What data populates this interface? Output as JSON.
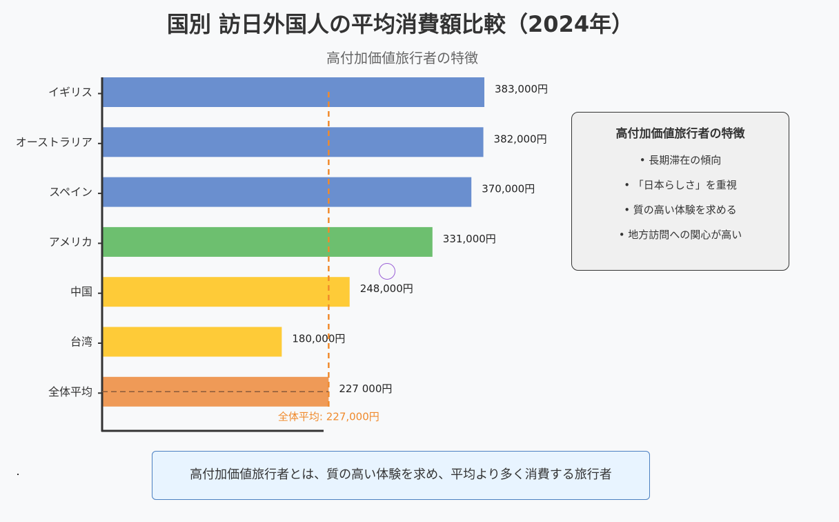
{
  "title": "国別 訪日外国人の平均消費額比較（2024年）",
  "subtitle": "高付加価値旅行者の特徴",
  "chart_data": {
    "type": "bar",
    "orientation": "horizontal",
    "title": "国別 訪日外国人の平均消費額比較（2024年）",
    "subtitle": "高付加価値旅行者の特徴",
    "categories": [
      "イギリス",
      "オーストラリア",
      "スペイン",
      "アメリカ",
      "中国",
      "台湾",
      "全体平均"
    ],
    "values": [
      383000,
      382000,
      370000,
      331000,
      248000,
      180000,
      227000
    ],
    "value_labels": [
      "383,000円",
      "382,000円",
      "370,000円",
      "331,000円",
      "248,000円",
      "180,000円",
      "227 000円"
    ],
    "colors": [
      "#6a8fcf",
      "#6a8fcf",
      "#6a8fcf",
      "#6dbf6f",
      "#fecb38",
      "#fecb38",
      "#ef9a57"
    ],
    "xlim": [
      0,
      383000
    ],
    "average": {
      "value": 227000,
      "label": "全体平均: 227,000円",
      "color": "#f08a2c"
    },
    "grid": false
  },
  "info_box": {
    "title": "高付加価値旅行者の特徴",
    "items": [
      "• 長期滞在の傾向",
      "• 「日本らしさ」を重視",
      "• 質の高い体験を求める",
      "• 地方訪問への関心が高い"
    ]
  },
  "note": "高付加価値旅行者とは、質の高い体験を求め、平均より多く消費する旅行者"
}
